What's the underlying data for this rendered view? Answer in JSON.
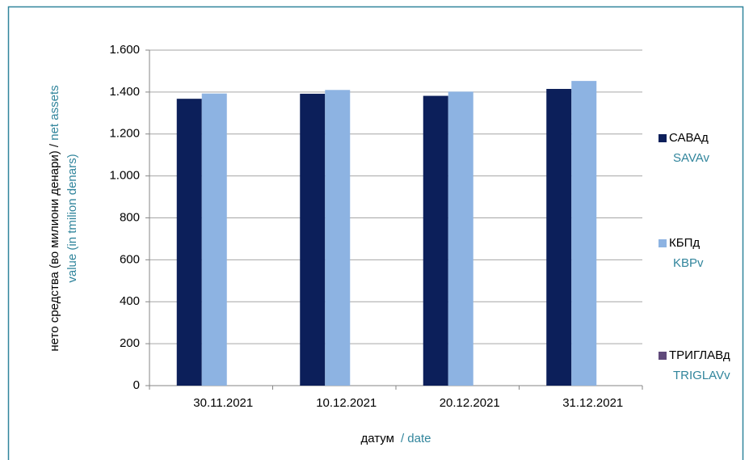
{
  "chart_data": {
    "type": "bar",
    "y_label": "нето средства (во милиони денари) / ",
    "y_label_en": [
      "net assets",
      "value  (in tmilion  denars)"
    ],
    "x_label": "датум",
    "x_label_en": "/ date",
    "categories": [
      "30.11.2021",
      "10.12.2021",
      "20.12.2021",
      "31.12.2021"
    ],
    "series": [
      {
        "name": "САВАд",
        "name_en": "SAVAv",
        "color": "#0c1f5a",
        "values": [
          1368,
          1392,
          1382,
          1415
        ]
      },
      {
        "name": "КБПд",
        "name_en": "KBPv",
        "color": "#8db3e2",
        "values": [
          1393,
          1410,
          1402,
          1453
        ]
      },
      {
        "name": "ТРИГЛАВд",
        "name_en": "TRIGLAVv",
        "color": "#604a7b",
        "values": [
          null,
          null,
          null,
          null
        ]
      }
    ],
    "ylim": [
      0,
      1600
    ],
    "yticks": [
      0,
      200,
      400,
      600,
      800,
      {
        "value": 1000,
        "label": "1.000"
      },
      {
        "value": 1200,
        "label": "1.200"
      },
      {
        "value": 1400,
        "label": "1.400"
      },
      {
        "value": 1600,
        "label": "1.600"
      }
    ],
    "grid": true
  }
}
